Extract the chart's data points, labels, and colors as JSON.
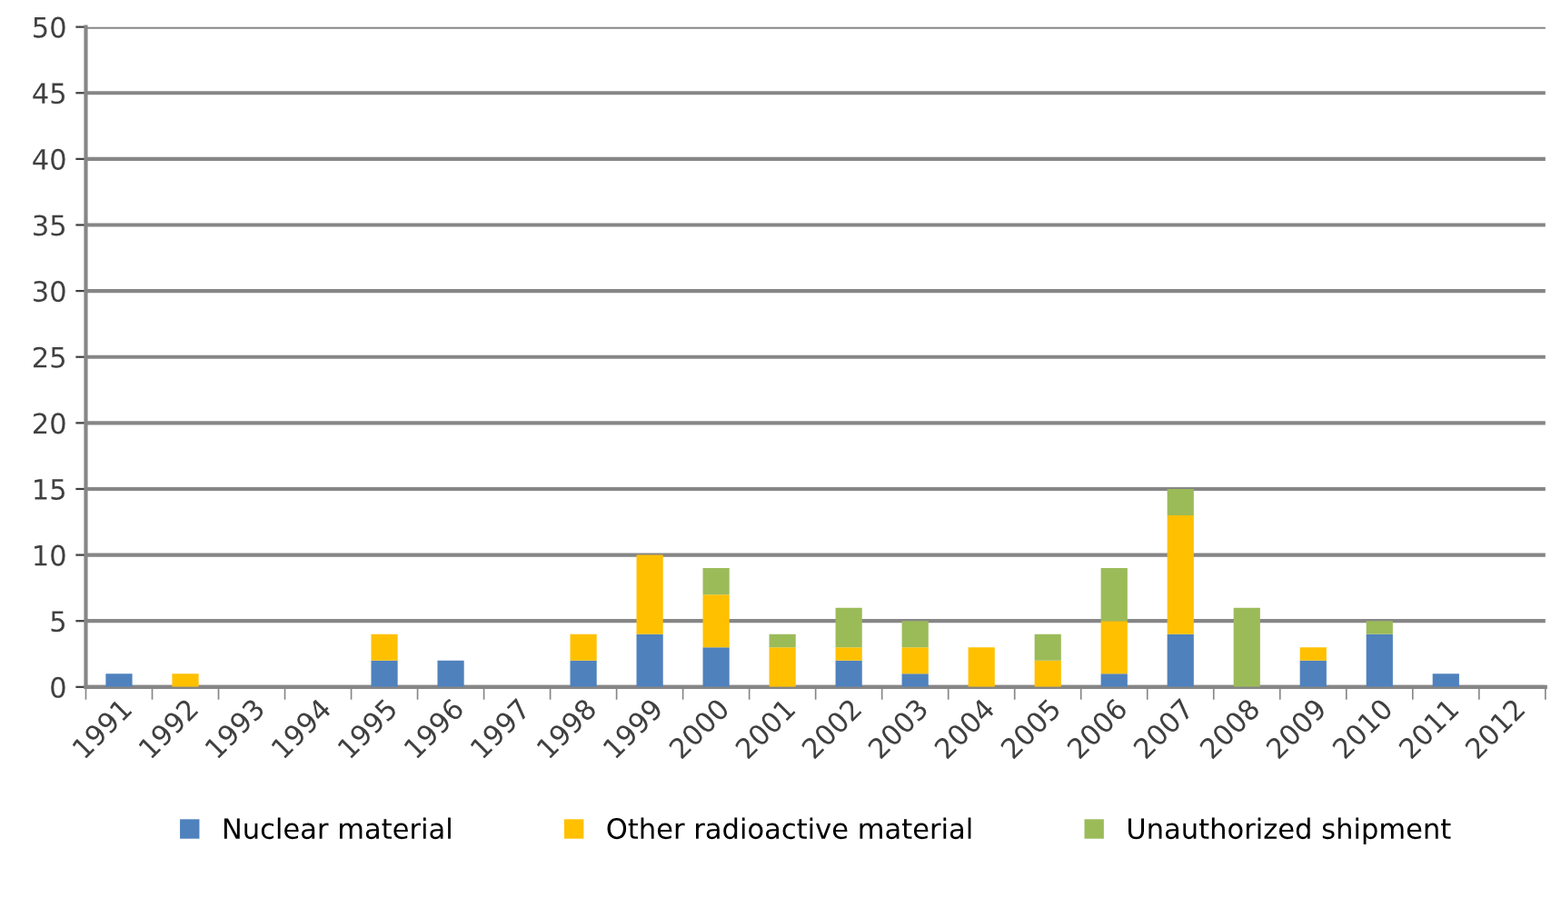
{
  "chart_data": {
    "type": "bar",
    "stacked": true,
    "categories": [
      "1991",
      "1992",
      "1993",
      "1994",
      "1995",
      "1996",
      "1997",
      "1998",
      "1999",
      "2000",
      "2001",
      "2002",
      "2003",
      "2004",
      "2005",
      "2006",
      "2007",
      "2008",
      "2009",
      "2010",
      "2011",
      "2012"
    ],
    "series": [
      {
        "name": "Nuclear material",
        "color": "#4f81bd",
        "values": [
          1,
          0,
          0,
          0,
          2,
          2,
          0,
          2,
          4,
          3,
          0,
          2,
          1,
          0,
          0,
          1,
          4,
          0,
          2,
          4,
          1,
          0
        ]
      },
      {
        "name": "Other radioactive material",
        "color": "#ffc000",
        "values": [
          0,
          1,
          0,
          0,
          2,
          0,
          0,
          2,
          6,
          4,
          3,
          1,
          2,
          3,
          2,
          4,
          9,
          0,
          1,
          0,
          0,
          0
        ]
      },
      {
        "name": "Unauthorized shipment",
        "color": "#9bbb59",
        "values": [
          0,
          0,
          0,
          0,
          0,
          0,
          0,
          0,
          0,
          2,
          1,
          3,
          2,
          0,
          2,
          4,
          2,
          6,
          0,
          1,
          0,
          0
        ]
      }
    ],
    "ylim": [
      0,
      50
    ],
    "yticks": [
      0,
      5,
      10,
      15,
      20,
      25,
      30,
      35,
      40,
      45,
      50
    ],
    "grid": "y",
    "legend": "bottom"
  }
}
